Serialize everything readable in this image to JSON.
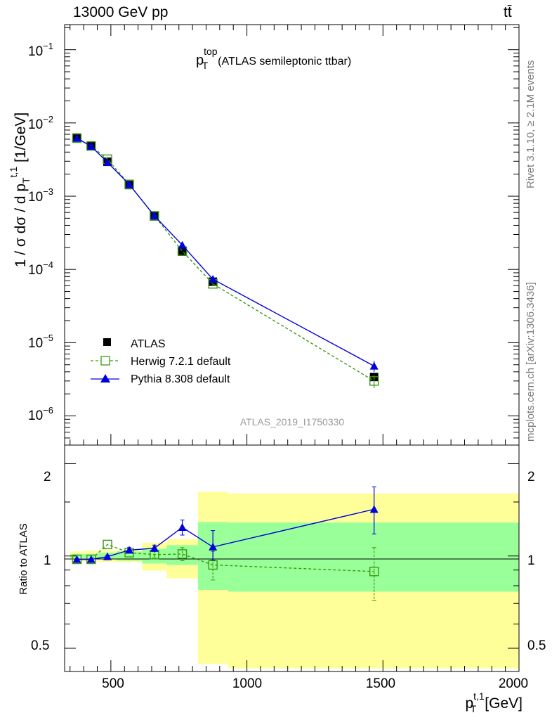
{
  "header": {
    "energy_label": "13000 GeV pp",
    "process_label": "tt̄"
  },
  "side_labels": {
    "rivet": "Rivet 3.1.10, ≥ 2.1M events",
    "mcplots": "mcplots.cern.ch [arXiv:1306.3436]"
  },
  "chart_data": [
    {
      "type": "scatter",
      "panel": "main",
      "title_main": "p",
      "title_sup": "top",
      "title_sub": "T",
      "title_rest": "(ATLAS semileptonic ttbar)",
      "ylabel": "1 / σ dσ / d p_T^{t,1} [1/GeV]",
      "yscale": "log",
      "ylim": [
        4e-07,
        0.22
      ],
      "xlim": [
        330,
        2000
      ],
      "watermark": "ATLAS_2019_I1750330",
      "legend_placement": "bottom-left",
      "series": [
        {
          "name": "ATLAS",
          "color": "#000000",
          "marker": "filled-square",
          "x": [
            375,
            427.5,
            487.5,
            567.5,
            660,
            762.5,
            875,
            1467.5
          ],
          "y": [
            0.0063,
            0.0049,
            0.00295,
            0.00142,
            0.00053,
            0.000175,
            6.8e-05,
            3.4e-06
          ]
        },
        {
          "name": "Herwig 7.2.1 default",
          "color": "#3a9a10",
          "marker": "open-square",
          "line": "dashed",
          "x": [
            375,
            427.5,
            487.5,
            567.5,
            660,
            762.5,
            875,
            1467.5
          ],
          "y": [
            0.0062,
            0.00485,
            0.0032,
            0.00145,
            0.00054,
            0.000178,
            6.35e-05,
            3e-06
          ],
          "y_err": [
            0,
            0,
            0,
            0,
            0,
            0,
            4e-06,
            6e-07
          ]
        },
        {
          "name": "Pythia 8.308 default",
          "color": "#0000dd",
          "marker": "filled-triangle",
          "line": "solid",
          "x": [
            375,
            427.5,
            487.5,
            567.5,
            660,
            762.5,
            875,
            1467.5
          ],
          "y": [
            0.0062,
            0.0048,
            0.0029,
            0.00145,
            0.00054,
            0.000215,
            7.35e-05,
            4.8e-06
          ],
          "y_err": [
            0,
            0,
            0,
            0,
            0,
            0,
            8e-06,
            8e-07
          ]
        }
      ]
    },
    {
      "type": "scatter",
      "panel": "ratio",
      "ylabel": "Ratio to ATLAS",
      "xlabel_main": "p",
      "xlabel_sup": "t,1",
      "xlabel_sub": "T",
      "xlabel_rest": "[GeV]",
      "xlim": [
        330,
        2000
      ],
      "ylim": [
        0.42,
        2.3
      ],
      "yscale": "log",
      "x_ticks": [
        500,
        1000,
        1500,
        2000
      ],
      "y_ticks": [
        0.5,
        1,
        2
      ],
      "bands": {
        "edges": [
          350,
          400,
          455,
          520,
          615,
          705,
          820,
          930,
          2000
        ],
        "inner_lo": [
          0.985,
          0.985,
          0.975,
          0.965,
          0.945,
          0.935,
          0.775,
          0.765
        ],
        "inner_hi": [
          1.015,
          1.015,
          1.025,
          1.035,
          1.055,
          1.085,
          1.29,
          1.285
        ],
        "outer_lo": [
          0.965,
          0.96,
          0.955,
          0.955,
          0.895,
          0.845,
          0.445,
          0.43
        ],
        "outer_hi": [
          1.035,
          1.04,
          1.045,
          1.045,
          1.105,
          1.135,
          1.62,
          1.6
        ],
        "inner_color": "#99ff99",
        "outer_color": "#ffff99"
      },
      "series": [
        {
          "name": "Herwig 7.2.1 default",
          "color": "#3a9a10",
          "marker": "open-square",
          "line": "dashed",
          "x": [
            375,
            427.5,
            487.5,
            567.5,
            660,
            762.5,
            875,
            1467.5
          ],
          "y": [
            0.975,
            0.975,
            1.09,
            1.025,
            1.01,
            1.015,
            0.935,
            0.89
          ],
          "y_lo": [
            0.975,
            0.975,
            1.09,
            1.025,
            0.985,
            0.965,
            0.835,
            0.715
          ],
          "y_hi": [
            0.975,
            0.975,
            1.09,
            1.025,
            1.035,
            1.065,
            1.035,
            1.065
          ]
        },
        {
          "name": "Pythia 8.308 default",
          "color": "#0000dd",
          "marker": "filled-triangle",
          "line": "solid",
          "x": [
            375,
            427.5,
            487.5,
            567.5,
            660,
            762.5,
            875,
            1467.5
          ],
          "y": [
            0.975,
            0.975,
            0.995,
            1.045,
            1.06,
            1.24,
            1.07,
            1.42
          ],
          "y_lo": [
            0.975,
            0.975,
            0.985,
            1.025,
            1.035,
            1.17,
            0.97,
            1.18
          ],
          "y_hi": [
            0.975,
            0.975,
            1.005,
            1.065,
            1.085,
            1.31,
            1.21,
            1.68
          ]
        }
      ]
    }
  ],
  "main_ticks": {
    "labels": [
      {
        "mant": "10",
        "exp": "−1"
      },
      {
        "mant": "10",
        "exp": "−2"
      },
      {
        "mant": "10",
        "exp": "−3"
      },
      {
        "mant": "10",
        "exp": "−4"
      },
      {
        "mant": "10",
        "exp": "−5"
      },
      {
        "mant": "10",
        "exp": "−6"
      }
    ],
    "values": [
      0.1,
      0.01,
      0.001,
      0.0001,
      1e-05,
      1e-06
    ]
  },
  "ratio_ticks": {
    "labels": [
      "2",
      "1",
      "0.5"
    ],
    "x_labels": [
      "500",
      "1000",
      "1500",
      "2000"
    ]
  }
}
